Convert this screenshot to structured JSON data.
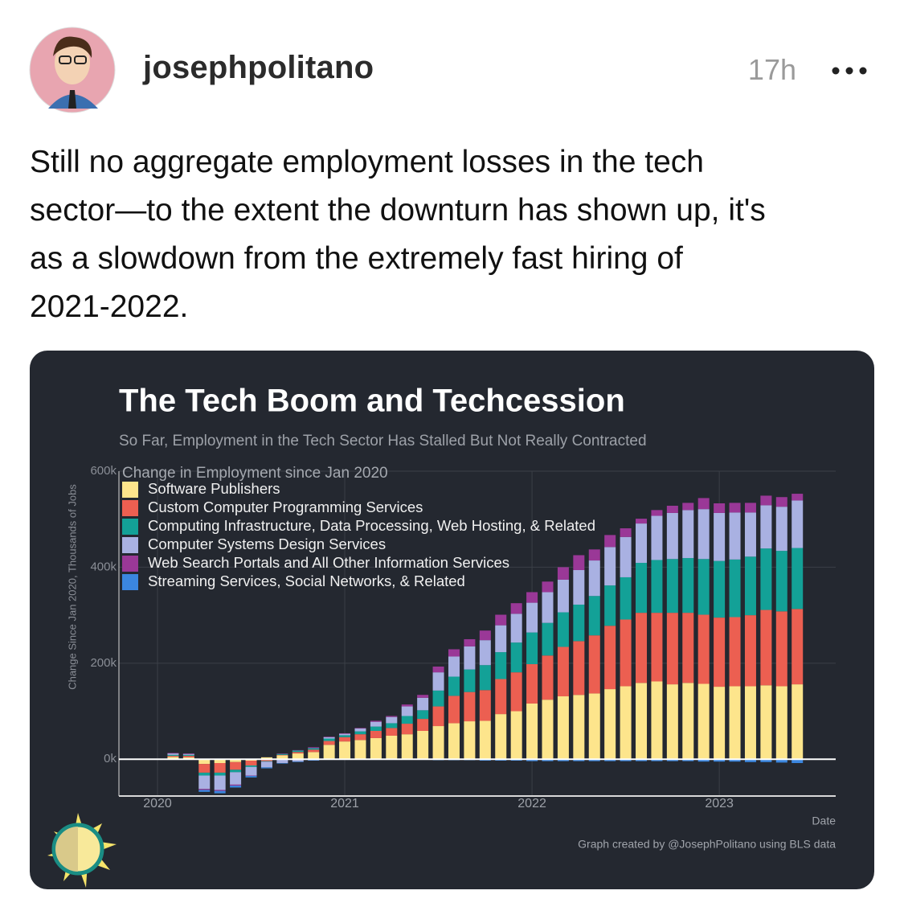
{
  "post": {
    "username": "josephpolitano",
    "time": "17h",
    "text_lines": [
      "Still no aggregate employment losses in the tech",
      "sector—to the extent the downturn has shown up, it's",
      "as a slowdown from the extremely fast hiring of",
      "2021-2022."
    ]
  },
  "chart_data": {
    "type": "bar",
    "stacked": true,
    "title": "The Tech Boom and Techcession",
    "subtitle": "So Far, Employment in the Tech Sector Has Stalled But Not Really Contracted",
    "y_label": "Change Since Jan 2020, Thousands of Jobs",
    "x_label": "Date",
    "legend_title": "Change in Employment since Jan 2020",
    "legend_position": "top-left",
    "caption": "Graph created by @JosephPolitano using BLS data",
    "grid": true,
    "ylim": [
      -75,
      600
    ],
    "yticks": [
      {
        "value": 0,
        "label": "0k"
      },
      {
        "value": 200,
        "label": "200k"
      },
      {
        "value": 400,
        "label": "400k"
      },
      {
        "value": 600,
        "label": "600k"
      }
    ],
    "categories": [
      "2020",
      null,
      null,
      null,
      null,
      null,
      null,
      null,
      null,
      null,
      null,
      null,
      "2021",
      null,
      null,
      null,
      null,
      null,
      null,
      null,
      null,
      null,
      null,
      null,
      "2022",
      null,
      null,
      null,
      null,
      null,
      null,
      null,
      null,
      null,
      null,
      null,
      "2023",
      null,
      null,
      null,
      null,
      null
    ],
    "series": [
      {
        "name": "Software Publishers",
        "color": "#fde58c",
        "values": [
          0,
          5,
          4,
          -10,
          -8,
          -6,
          -3,
          4,
          8,
          12,
          15,
          30,
          37,
          40,
          44,
          49,
          52,
          59,
          69,
          75,
          79,
          80,
          94,
          100,
          116,
          124,
          131,
          134,
          137,
          146,
          152,
          159,
          162,
          156,
          159,
          157,
          151,
          152,
          152,
          154,
          152,
          156
        ]
      },
      {
        "name": "Custom Computer Programming Services",
        "color": "#ec5f51",
        "values": [
          0,
          2,
          3,
          -18,
          -20,
          -16,
          -10,
          -4,
          1,
          3,
          5,
          8,
          9,
          12,
          15,
          16,
          22,
          25,
          41,
          57,
          61,
          64,
          73,
          81,
          82,
          92,
          103,
          112,
          121,
          132,
          139,
          146,
          143,
          149,
          146,
          144,
          144,
          144,
          148,
          157,
          156,
          157
        ]
      },
      {
        "name": "Computing Infrastructure, Data Processing, Web Hosting, & Related",
        "color": "#13a197",
        "values": [
          0,
          2,
          2,
          -6,
          -6,
          -5,
          -3,
          -1,
          2,
          3,
          3,
          5,
          4,
          6,
          9,
          10,
          16,
          18,
          33,
          40,
          47,
          52,
          56,
          62,
          66,
          68,
          72,
          76,
          82,
          84,
          88,
          104,
          110,
          112,
          114,
          116,
          118,
          120,
          122,
          128,
          126,
          127
        ]
      },
      {
        "name": "Computer Systems Design Services",
        "color": "#a9b1e2",
        "values": [
          0,
          3,
          2,
          -28,
          -30,
          -26,
          -18,
          -12,
          -8,
          -5,
          -2,
          3,
          3,
          6,
          10,
          13,
          20,
          26,
          38,
          42,
          48,
          52,
          56,
          60,
          62,
          64,
          68,
          72,
          74,
          80,
          84,
          82,
          92,
          96,
          100,
          104,
          100,
          98,
          92,
          90,
          92,
          99
        ]
      },
      {
        "name": "Web Search Portals and All Other Information Services",
        "color": "#9a3897",
        "values": [
          0,
          1,
          1,
          -2,
          -2,
          -2,
          -1,
          0,
          1,
          1,
          2,
          1,
          1,
          1,
          2,
          2,
          4,
          6,
          12,
          15,
          15,
          20,
          22,
          22,
          22,
          22,
          26,
          31,
          23,
          25,
          18,
          10,
          12,
          15,
          15,
          23,
          20,
          20,
          20,
          20,
          20,
          14
        ]
      },
      {
        "name": "Streaming Services, Social Networks, & Related",
        "color": "#3b86df",
        "values": [
          0,
          -1,
          -1,
          -4,
          -5,
          -4,
          -3,
          -2,
          -1,
          -1,
          -1,
          0,
          0,
          0,
          0,
          -1,
          -1,
          -1,
          -2,
          -2,
          -2,
          -3,
          -3,
          -3,
          -4,
          -4,
          -4,
          -4,
          -4,
          -4,
          -4,
          -4,
          -4,
          -4,
          -4,
          -5,
          -5,
          -5,
          -6,
          -6,
          -7,
          -8
        ]
      }
    ]
  }
}
